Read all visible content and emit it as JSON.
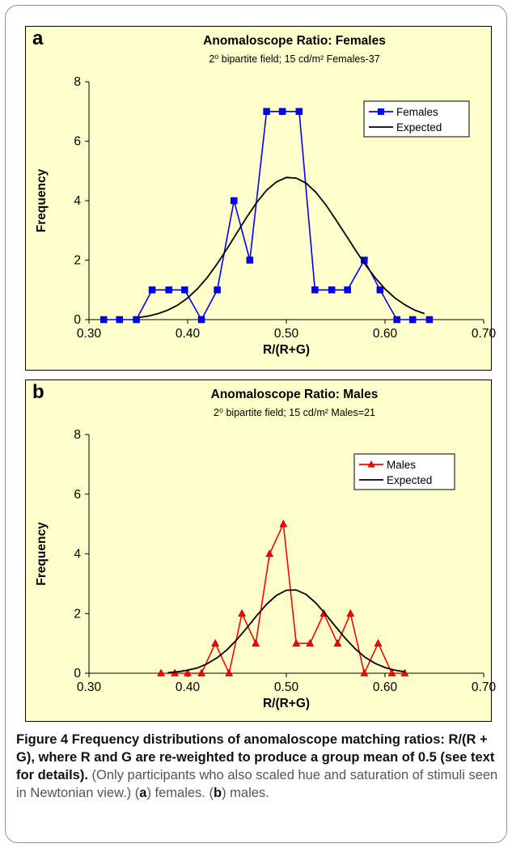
{
  "caption": {
    "label": "Figure 4",
    "bold_text": "Frequency distributions of anomaloscope matching ratios: R/(R + G), where R and G are re-weighted to produce a group mean of 0.5 (see text for details).",
    "normal_text": "(Only participants who also scaled hue and saturation of stimuli seen in Newtonian view.)",
    "panel_a_letter": "a",
    "panel_a_desc": "females.",
    "panel_b_letter": "b",
    "panel_b_desc": "males."
  },
  "chart_data": [
    {
      "type": "line",
      "panel_letter": "a",
      "title": "Anomaloscope Ratio: Females",
      "subtitle": "2⁰ bipartite field; 15 cd/m² Females-37",
      "xlabel": "R/(R+G)",
      "ylabel": "Frequency",
      "xlim": [
        0.3,
        0.7
      ],
      "ylim": [
        0,
        8
      ],
      "x_ticks": [
        "0.30",
        "0.40",
        "0.50",
        "0.60",
        "0.70"
      ],
      "y_ticks": [
        "0",
        "2",
        "4",
        "6",
        "8"
      ],
      "grid": false,
      "legend_position": "top-right",
      "series": [
        {
          "name": "Females",
          "color": "#0000ff",
          "marker": "square",
          "x": [
            0.315,
            0.331,
            0.348,
            0.364,
            0.381,
            0.397,
            0.414,
            0.43,
            0.447,
            0.463,
            0.48,
            0.496,
            0.513,
            0.529,
            0.546,
            0.562,
            0.579,
            0.595,
            0.612,
            0.628,
            0.645
          ],
          "y": [
            0,
            0,
            0,
            1,
            1,
            1,
            0,
            1,
            4,
            2,
            7,
            7,
            7,
            1,
            1,
            1,
            2,
            1,
            0,
            0,
            0
          ]
        },
        {
          "name": "Expected",
          "color": "#000000",
          "marker": "none",
          "x": [
            0.35,
            0.36,
            0.37,
            0.38,
            0.39,
            0.4,
            0.41,
            0.42,
            0.43,
            0.44,
            0.45,
            0.46,
            0.47,
            0.48,
            0.49,
            0.5,
            0.51,
            0.52,
            0.53,
            0.54,
            0.55,
            0.56,
            0.57,
            0.58,
            0.59,
            0.6,
            0.61,
            0.62,
            0.63,
            0.64
          ],
          "y": [
            0.07,
            0.12,
            0.2,
            0.32,
            0.49,
            0.73,
            1.04,
            1.42,
            1.88,
            2.39,
            2.92,
            3.45,
            3.94,
            4.35,
            4.63,
            4.78,
            4.76,
            4.59,
            4.28,
            3.86,
            3.37,
            2.86,
            2.34,
            1.85,
            1.41,
            1.03,
            0.73,
            0.5,
            0.32,
            0.2
          ]
        }
      ]
    },
    {
      "type": "line",
      "panel_letter": "b",
      "title": "Anomaloscope Ratio: Males",
      "subtitle": "2⁰ bipartite field; 15 cd/m² Males=21",
      "xlabel": "R/(R+G)",
      "ylabel": "Frequency",
      "xlim": [
        0.3,
        0.7
      ],
      "ylim": [
        0,
        8
      ],
      "x_ticks": [
        "0.30",
        "0.40",
        "0.50",
        "0.60",
        "0.70"
      ],
      "y_ticks": [
        "0",
        "2",
        "4",
        "6",
        "8"
      ],
      "grid": false,
      "legend_position": "top-right",
      "series": [
        {
          "name": "Males",
          "color": "#ff0000",
          "marker": "triangle",
          "x": [
            0.373,
            0.387,
            0.4,
            0.414,
            0.428,
            0.442,
            0.455,
            0.469,
            0.483,
            0.497,
            0.51,
            0.524,
            0.538,
            0.552,
            0.565,
            0.579,
            0.593,
            0.607,
            0.62
          ],
          "y": [
            0,
            0,
            0,
            0,
            1,
            0,
            2,
            1,
            4,
            5,
            1,
            1,
            2,
            1,
            2,
            0,
            1,
            0,
            0
          ]
        },
        {
          "name": "Expected",
          "color": "#000000",
          "marker": "none",
          "x": [
            0.38,
            0.39,
            0.4,
            0.41,
            0.42,
            0.43,
            0.44,
            0.45,
            0.46,
            0.47,
            0.48,
            0.49,
            0.5,
            0.51,
            0.52,
            0.53,
            0.54,
            0.55,
            0.56,
            0.57,
            0.58,
            0.59,
            0.6,
            0.61,
            0.62
          ],
          "y": [
            0.02,
            0.05,
            0.1,
            0.18,
            0.32,
            0.52,
            0.79,
            1.13,
            1.52,
            1.93,
            2.31,
            2.61,
            2.78,
            2.79,
            2.64,
            2.35,
            1.97,
            1.56,
            1.16,
            0.81,
            0.53,
            0.33,
            0.19,
            0.1,
            0.05
          ]
        }
      ]
    }
  ]
}
